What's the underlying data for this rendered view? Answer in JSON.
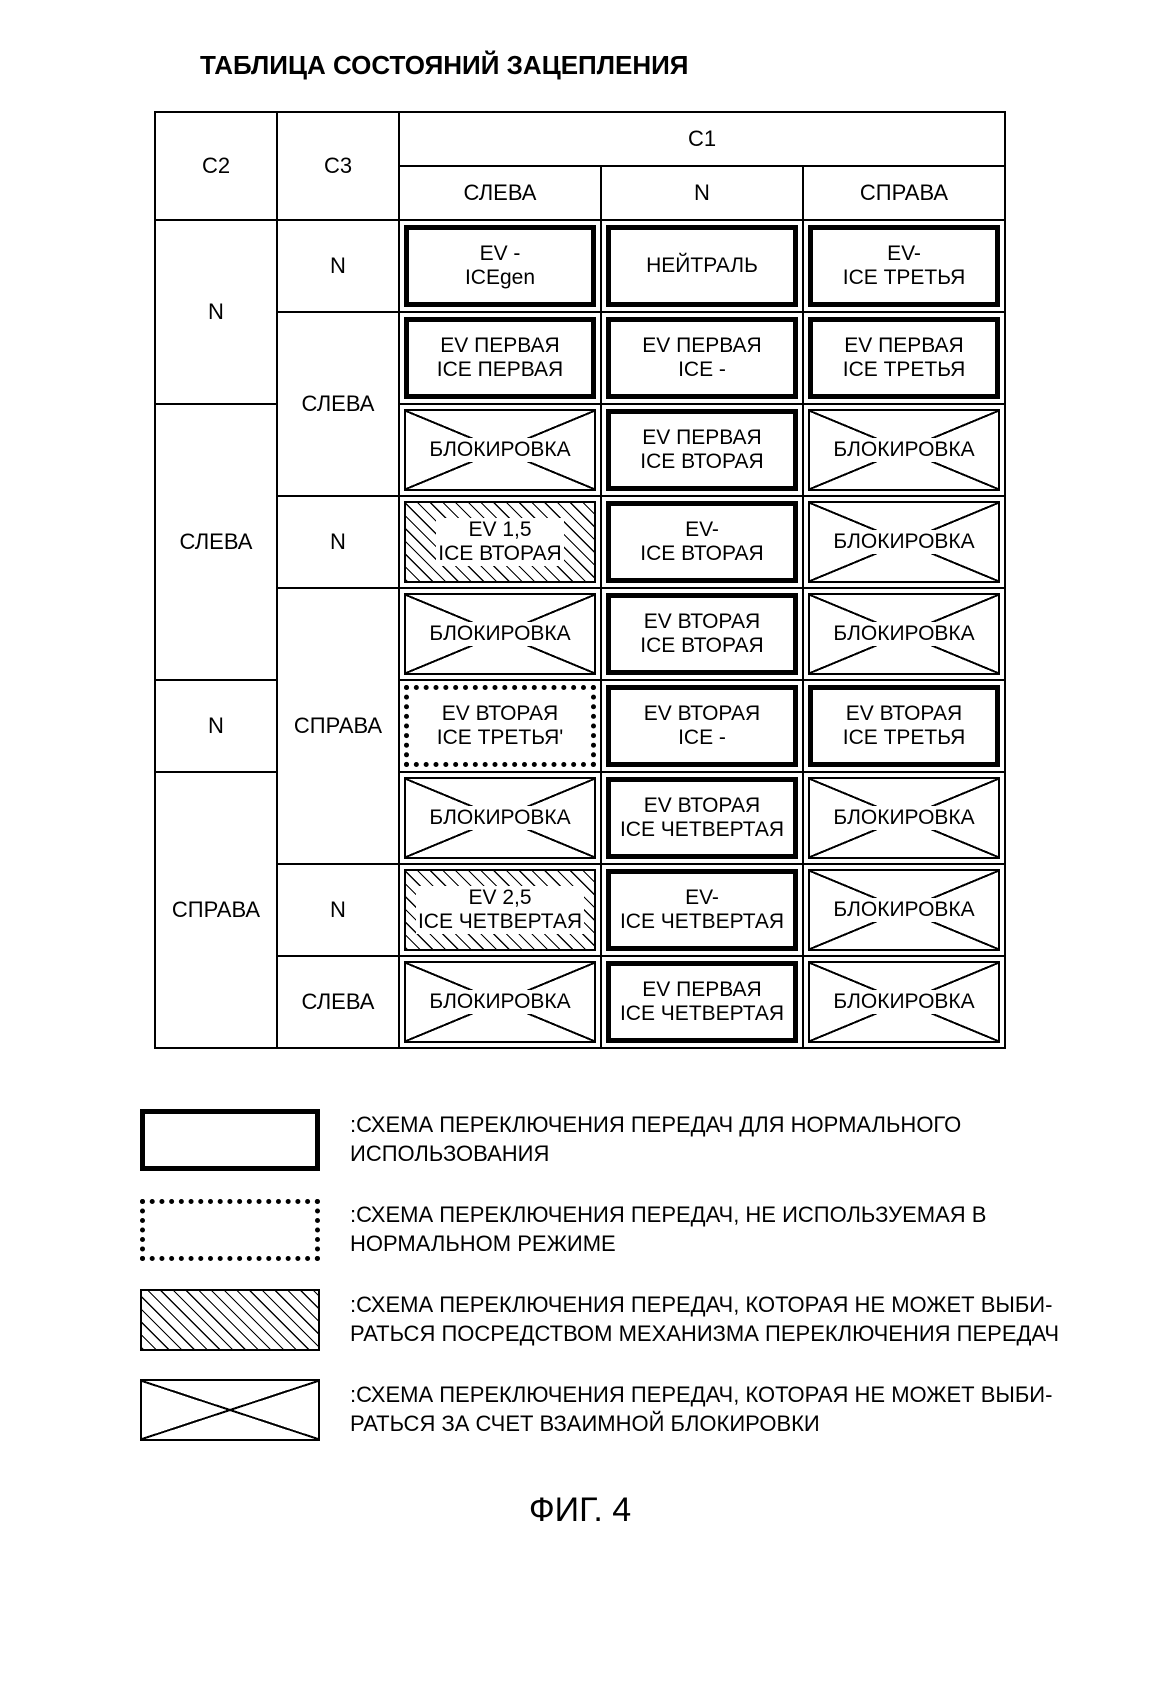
{
  "title": "ТАБЛИЦА СОСТОЯНИЙ ЗАЦЕПЛЕНИЯ",
  "figure": "ФИГ. 4",
  "headers": {
    "c1": "C1",
    "c2": "C2",
    "c3": "C3",
    "left": "СЛЕВА",
    "n": "N",
    "right": "СПРАВА"
  },
  "rowLabels": {
    "c2": [
      "N",
      "СЛЕВА",
      "N",
      "СПРАВА"
    ],
    "c3": [
      "N",
      "СЛЕВА",
      "N",
      "СПРАВА",
      "N",
      "СЛЕВА"
    ]
  },
  "rows": [
    [
      {
        "l1": "EV -",
        "l2": "ICEgen",
        "style": "solid"
      },
      {
        "l1": "НЕЙТРАЛЬ",
        "l2": "",
        "style": "solid"
      },
      {
        "l1": "EV-",
        "l2": "ICE ТРЕТЬЯ",
        "style": "solid"
      }
    ],
    [
      {
        "l1": "EV ПЕРВАЯ",
        "l2": "ICE ПЕРВАЯ",
        "style": "solid"
      },
      {
        "l1": "EV ПЕРВАЯ",
        "l2": "ICE -",
        "style": "solid"
      },
      {
        "l1": "EV ПЕРВАЯ",
        "l2": "ICE ТРЕТЬЯ",
        "style": "solid"
      }
    ],
    [
      {
        "l1": "БЛОКИРОВКА",
        "l2": "",
        "style": "cross"
      },
      {
        "l1": "EV ПЕРВАЯ",
        "l2": "ICE ВТОРАЯ",
        "style": "solid"
      },
      {
        "l1": "БЛОКИРОВКА",
        "l2": "",
        "style": "cross"
      }
    ],
    [
      {
        "l1": "EV 1,5",
        "l2": "ICE ВТОРАЯ",
        "style": "hatch"
      },
      {
        "l1": "EV-",
        "l2": "ICE ВТОРАЯ",
        "style": "solid"
      },
      {
        "l1": "БЛОКИРОВКА",
        "l2": "",
        "style": "cross"
      }
    ],
    [
      {
        "l1": "БЛОКИРОВКА",
        "l2": "",
        "style": "cross"
      },
      {
        "l1": "EV ВТОРАЯ",
        "l2": "ICE ВТОРАЯ",
        "style": "solid"
      },
      {
        "l1": "БЛОКИРОВКА",
        "l2": "",
        "style": "cross"
      }
    ],
    [
      {
        "l1": "EV ВТОРАЯ",
        "l2": "ICE ТРЕТЬЯ'",
        "style": "dotted"
      },
      {
        "l1": "EV ВТОРАЯ",
        "l2": "ICE -",
        "style": "solid"
      },
      {
        "l1": "EV ВТОРАЯ",
        "l2": "ICE ТРЕТЬЯ",
        "style": "solid"
      }
    ],
    [
      {
        "l1": "БЛОКИРОВКА",
        "l2": "",
        "style": "cross"
      },
      {
        "l1": "EV ВТОРАЯ",
        "l2": "ICE ЧЕТВЕРТАЯ",
        "style": "solid"
      },
      {
        "l1": "БЛОКИРОВКА",
        "l2": "",
        "style": "cross"
      }
    ],
    [
      {
        "l1": "EV 2,5",
        "l2": "ICE ЧЕТВЕРТАЯ",
        "style": "hatch"
      },
      {
        "l1": "EV-",
        "l2": "ICE ЧЕТВЕРТАЯ",
        "style": "solid"
      },
      {
        "l1": "БЛОКИРОВКА",
        "l2": "",
        "style": "cross"
      }
    ],
    [
      {
        "l1": "БЛОКИРОВКА",
        "l2": "",
        "style": "cross"
      },
      {
        "l1": "EV ПЕРВАЯ",
        "l2": "ICE ЧЕТВЕРТАЯ",
        "style": "solid"
      },
      {
        "l1": "БЛОКИРОВКА",
        "l2": "",
        "style": "cross"
      }
    ]
  ],
  "legend": [
    {
      "style": "solid",
      "text": ":СХЕМА ПЕРЕКЛЮЧЕНИЯ ПЕРЕДАЧ ДЛЯ НОРМАЛЬНОГО ИСПОЛЬЗОВАНИЯ"
    },
    {
      "style": "dotted",
      "text": ":СХЕМА ПЕРЕКЛЮЧЕНИЯ ПЕРЕДАЧ, НЕ ИСПОЛЬЗУЕМАЯ В НОРМАЛЬНОМ РЕЖИМЕ"
    },
    {
      "style": "hatch",
      "text": ":СХЕМА ПЕРЕКЛЮЧЕНИЯ ПЕРЕДАЧ, КОТОРАЯ НЕ МОЖЕТ ВЫБИ-\nРАТЬСЯ ПОСРЕДСТВОМ МЕХАНИЗМА ПЕРЕКЛЮЧЕНИЯ ПЕРЕДАЧ"
    },
    {
      "style": "cross",
      "text": ":СХЕМА ПЕРЕКЛЮЧЕНИЯ ПЕРЕДАЧ, КОТОРАЯ НЕ МОЖЕТ ВЫБИ-\nРАТЬСЯ ЗА СЧЕТ ВЗАИМНОЙ БЛОКИРОВКИ"
    }
  ],
  "styleMap": {
    "solid": "style-solid",
    "dotted": "style-dotted",
    "hatch": "style-hatch",
    "cross": "style-cross"
  }
}
